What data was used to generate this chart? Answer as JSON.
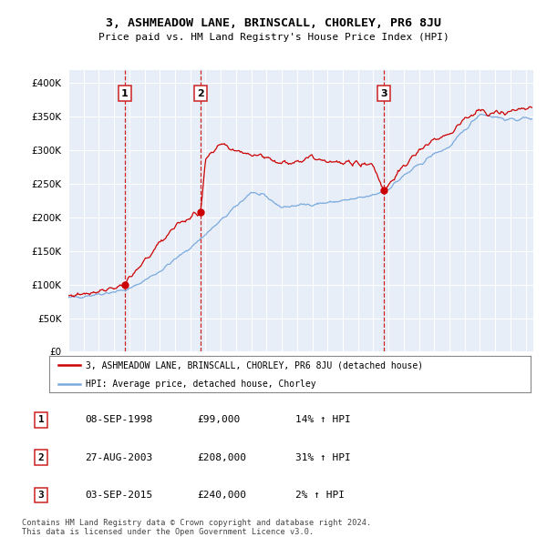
{
  "title": "3, ASHMEADOW LANE, BRINSCALL, CHORLEY, PR6 8JU",
  "subtitle": "Price paid vs. HM Land Registry's House Price Index (HPI)",
  "legend_line1": "3, ASHMEADOW LANE, BRINSCALL, CHORLEY, PR6 8JU (detached house)",
  "legend_line2": "HPI: Average price, detached house, Chorley",
  "footer1": "Contains HM Land Registry data © Crown copyright and database right 2024.",
  "footer2": "This data is licensed under the Open Government Licence v3.0.",
  "sales": [
    {
      "num": "1",
      "date": "08-SEP-1998",
      "price": "£99,000",
      "hpi": "14% ↑ HPI",
      "year": 1998.69,
      "val": 99000
    },
    {
      "num": "2",
      "date": "27-AUG-2003",
      "price": "£208,000",
      "hpi": "31% ↑ HPI",
      "year": 2003.66,
      "val": 208000
    },
    {
      "num": "3",
      "date": "03-SEP-2015",
      "price": "£240,000",
      "hpi": "2% ↑ HPI",
      "year": 2015.68,
      "val": 240000
    }
  ],
  "ylim": [
    0,
    420000
  ],
  "yticks": [
    0,
    50000,
    100000,
    150000,
    200000,
    250000,
    300000,
    350000,
    400000
  ],
  "xlim_start": 1995.0,
  "xlim_end": 2025.5,
  "plot_bg": "#e8eef8",
  "grid_color": "#ffffff",
  "hpi_color": "#7aaadd",
  "price_color": "#cc0000",
  "vline_color": "#cc2222",
  "box_color": "#cc2222"
}
